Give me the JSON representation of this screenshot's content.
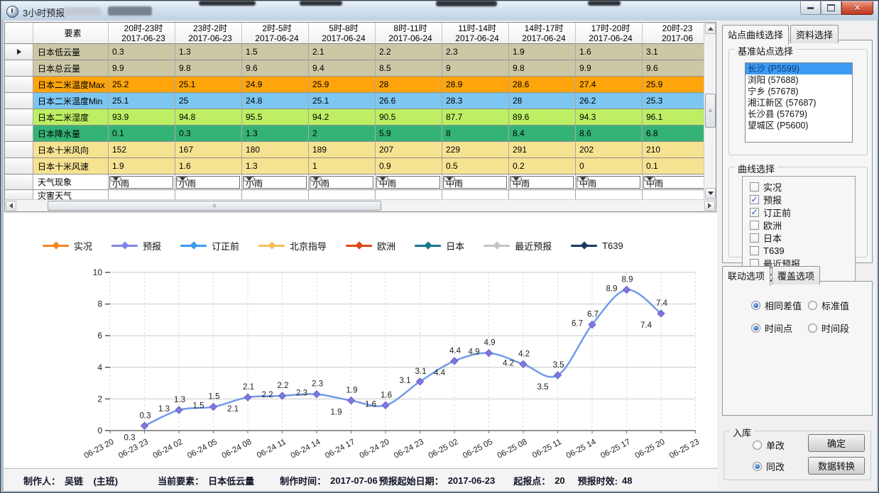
{
  "window": {
    "title": "3小时预报",
    "controls": {
      "minimize": "minimize",
      "maximize": "maximize",
      "close": "close"
    }
  },
  "table": {
    "element_column_header": "要素",
    "time_columns": [
      {
        "period": "20时-23时",
        "date": "2017-06-23"
      },
      {
        "period": "23时-2时",
        "date": "2017-06-23"
      },
      {
        "period": "2时-5时",
        "date": "2017-06-24"
      },
      {
        "period": "5时-8时",
        "date": "2017-06-24"
      },
      {
        "period": "8时-11时",
        "date": "2017-06-24"
      },
      {
        "period": "11时-14时",
        "date": "2017-06-24"
      },
      {
        "period": "14时-17时",
        "date": "2017-06-24"
      },
      {
        "period": "17时-20时",
        "date": "2017-06-24"
      },
      {
        "period": "20时-23",
        "date": "2017-06"
      }
    ],
    "rows": [
      {
        "label": "日本低云量",
        "bg": "#ccc8a6",
        "values": [
          "0.3",
          "1.3",
          "1.5",
          "2.1",
          "2.2",
          "2.3",
          "1.9",
          "1.6",
          "3.1"
        ]
      },
      {
        "label": "日本总云量",
        "bg": "#ccc8a6",
        "values": [
          "9.9",
          "9.8",
          "9.6",
          "9.4",
          "8.5",
          "9",
          "9.8",
          "9.9",
          "9.6"
        ]
      },
      {
        "label": "日本二米温度Max",
        "bg": "#ffa40a",
        "values": [
          "25.2",
          "25.1",
          "24.9",
          "25.9",
          "28",
          "28.9",
          "28.6",
          "27.4",
          "25.9"
        ]
      },
      {
        "label": "日本二米温度Min",
        "bg": "#7cc6f2",
        "values": [
          "25.1",
          "25",
          "24.8",
          "25.1",
          "26.6",
          "28.3",
          "28",
          "26.2",
          "25.3"
        ]
      },
      {
        "label": "日本二米湿度",
        "bg": "#bdee64",
        "values": [
          "93.9",
          "94.8",
          "95.5",
          "94.2",
          "90.5",
          "87.7",
          "89.6",
          "94.3",
          "96.1"
        ]
      },
      {
        "label": "日本降水量",
        "bg": "#35b376",
        "values": [
          "0.1",
          "0.3",
          "1.3",
          "2",
          "5.9",
          "8",
          "8.4",
          "8.6",
          "6.8"
        ]
      },
      {
        "label": "日本十米风向",
        "bg": "#f6e392",
        "values": [
          "152",
          "167",
          "180",
          "189",
          "207",
          "229",
          "291",
          "202",
          "210"
        ]
      },
      {
        "label": "日本十米风速",
        "bg": "#f6e392",
        "values": [
          "1.9",
          "1.6",
          "1.3",
          "1",
          "0.9",
          "0.5",
          "0.2",
          "0",
          "0.1"
        ]
      }
    ],
    "weather_row": {
      "label": "天气现象",
      "selects": [
        "小雨",
        "小雨",
        "小雨",
        "小雨",
        "中雨",
        "中雨",
        "中雨",
        "中雨",
        "中雨"
      ]
    },
    "disaster_row_label": "灾害天气"
  },
  "chart_data": {
    "type": "line",
    "title": "",
    "xlabel": "",
    "ylabel": "",
    "ylim": [
      0,
      10
    ],
    "y_ticks": [
      0,
      2,
      4,
      6,
      8,
      10
    ],
    "grid": true,
    "legend_position": "top",
    "x_ticks": [
      "06-23 20",
      "06-23 23",
      "06-24 02",
      "06-24 05",
      "06-24 08",
      "06-24 11",
      "06-24 14",
      "06-24 17",
      "06-24 20",
      "06-24 23",
      "06-25 02",
      "06-25 05",
      "06-25 08",
      "06-25 11",
      "06-25 14",
      "06-25 17",
      "06-25 20",
      "06-25 23"
    ],
    "legend": [
      {
        "name": "实况",
        "color": "#f2891e"
      },
      {
        "name": "预报",
        "color": "#8285e6"
      },
      {
        "name": "订正前",
        "color": "#3d9af0"
      },
      {
        "name": "北京指导",
        "color": "#f7be5a"
      },
      {
        "name": "欧洲",
        "color": "#dd4814"
      },
      {
        "name": "日本",
        "color": "#18768c"
      },
      {
        "name": "最近预报",
        "color": "#c4c4c4"
      },
      {
        "name": "T639",
        "color": "#1f3a60"
      }
    ],
    "series": [
      {
        "name": "预报",
        "color": "#7d79dd",
        "line_color": "#6e94e8",
        "marker": "diamond",
        "x": [
          "06-23 23",
          "06-24 02",
          "06-24 05",
          "06-24 08",
          "06-24 11",
          "06-24 14",
          "06-24 17",
          "06-24 20",
          "06-24 23",
          "06-25 02",
          "06-25 05",
          "06-25 08",
          "06-25 11",
          "06-25 14",
          "06-25 17",
          "06-25 20"
        ],
        "values": [
          0.3,
          1.3,
          1.5,
          2.1,
          2.2,
          2.3,
          1.9,
          1.6,
          3.1,
          4.4,
          4.9,
          4.2,
          3.5,
          6.7,
          8.9,
          7.4
        ]
      },
      {
        "name": "订正前",
        "color": "#3d9af0",
        "line_color": "#3d9af0",
        "marker": "none",
        "x": [
          "06-23 23",
          "06-24 02",
          "06-24 05",
          "06-24 08",
          "06-24 11",
          "06-24 14",
          "06-24 17",
          "06-24 20",
          "06-24 23",
          "06-25 02",
          "06-25 05",
          "06-25 08",
          "06-25 11",
          "06-25 14",
          "06-25 17",
          "06-25 20"
        ],
        "values": [
          0.3,
          1.3,
          1.5,
          2.1,
          2.2,
          2.3,
          1.9,
          1.6,
          3.1,
          4.4,
          4.9,
          4.2,
          3.5,
          6.7,
          8.9,
          7.4
        ]
      }
    ]
  },
  "right_panel": {
    "tabs": [
      "站点曲线选择",
      "资料选择"
    ],
    "active_tab": "站点曲线选择",
    "station_group": {
      "title": "基准站点选择",
      "stations": [
        "长沙 (P5599)",
        "浏阳 (57688)",
        "宁乡 (57678)",
        "湘江新区 (57687)",
        "长沙县 (57679)",
        "望城区 (P5600)"
      ],
      "selected": "长沙 (P5599)"
    },
    "curve_group": {
      "title": "曲线选择",
      "options": [
        {
          "label": "实况",
          "checked": false
        },
        {
          "label": "预报",
          "checked": true
        },
        {
          "label": "订正前",
          "checked": true
        },
        {
          "label": "欧洲",
          "checked": false
        },
        {
          "label": "日本",
          "checked": false
        },
        {
          "label": "T639",
          "checked": false
        },
        {
          "label": "最近预报",
          "checked": false
        },
        {
          "label": "北京指导",
          "checked": false
        }
      ]
    },
    "option_tabs": {
      "tabs": [
        "联动选项",
        "覆盖选项"
      ],
      "active": "联动选项",
      "radio_rows": [
        [
          {
            "label": "相同差值",
            "selected": true
          },
          {
            "label": "标准值",
            "selected": false
          }
        ],
        [
          {
            "label": "时间点",
            "selected": true
          },
          {
            "label": "时间段",
            "selected": false
          }
        ]
      ]
    },
    "storage_group": {
      "title": "入库",
      "radios": [
        {
          "label": "单改",
          "selected": false
        },
        {
          "label": "同改",
          "selected": true
        }
      ],
      "buttons": [
        "确定",
        "数据转换"
      ]
    }
  },
  "status_bar": {
    "items": [
      {
        "label": "制作人：",
        "value": "吴链    (主班)"
      },
      {
        "label": "当前要素：",
        "value": "日本低云量"
      },
      {
        "label": "制作时间：",
        "value": "2017-07-06"
      },
      {
        "label": "预报起始日期：",
        "value": "2017-06-23"
      },
      {
        "label": "起报点：",
        "value": "20"
      },
      {
        "label": "预报时效:",
        "value": "48"
      }
    ]
  }
}
